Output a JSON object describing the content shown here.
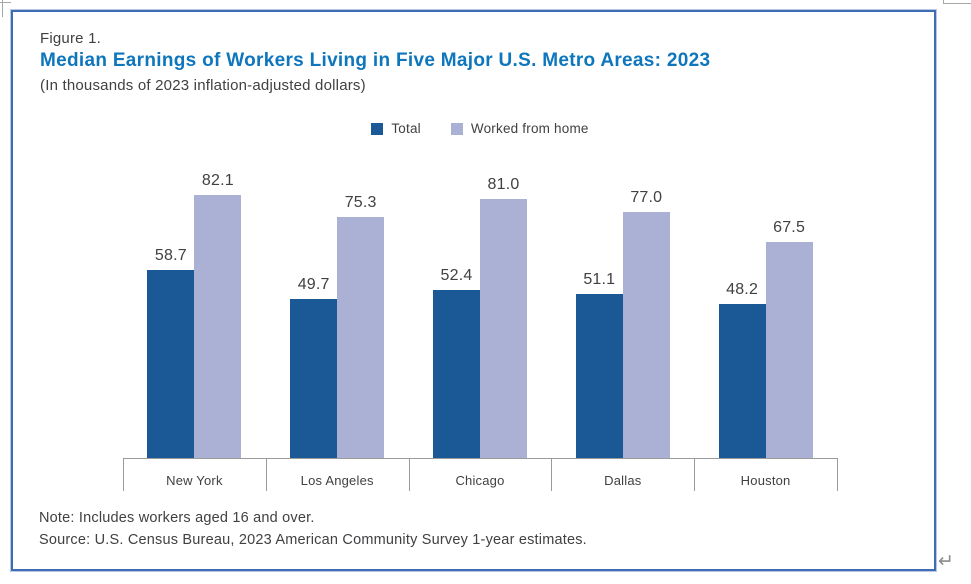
{
  "figure": {
    "label": "Figure 1.",
    "title": "Median Earnings of Workers Living in Five Major U.S. Metro Areas: 2023",
    "subtitle": "(In thousands of 2023 inflation-adjusted dollars)",
    "note": "Note: Includes workers aged 16 and over.",
    "source": "Source: U.S. Census Bureau, 2023 American Community Survey 1-year estimates.",
    "return_mark": "↵"
  },
  "legend": [
    {
      "label": "Total",
      "color": "#1b5896"
    },
    {
      "label": "Worked from home",
      "color": "#abb1d4"
    }
  ],
  "chart_data": {
    "type": "bar",
    "title": "Median Earnings of Workers Living in Five Major U.S. Metro Areas: 2023",
    "subtitle": "(In thousands of 2023 inflation-adjusted dollars)",
    "categories": [
      "New York",
      "Los Angeles",
      "Chicago",
      "Dallas",
      "Houston"
    ],
    "series": [
      {
        "name": "Total",
        "color": "#1b5896",
        "values": [
          58.7,
          49.7,
          52.4,
          51.1,
          48.2
        ]
      },
      {
        "name": "Worked from home",
        "color": "#abb1d4",
        "values": [
          82.1,
          75.3,
          81.0,
          77.0,
          67.5
        ]
      }
    ],
    "ylim": [
      0,
      100
    ],
    "grid": false,
    "value_labels": true,
    "value_format": "one_decimal",
    "legend_position": "top-center"
  },
  "colors": {
    "title_blue": "#0e76bc",
    "body_text": "#414042",
    "border_blue": "#3e6db5",
    "axis_gray": "#9a9a9a",
    "series_total": "#1b5896",
    "series_wfh": "#abb1d4"
  }
}
